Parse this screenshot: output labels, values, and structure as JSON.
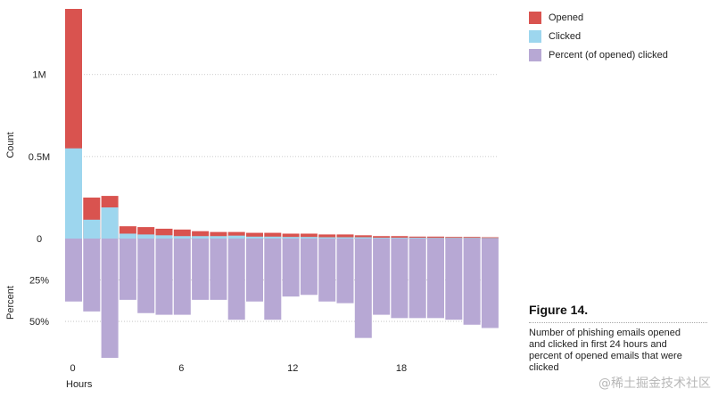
{
  "chart_data": {
    "type": "bar",
    "hours": [
      0,
      1,
      2,
      3,
      4,
      5,
      6,
      7,
      8,
      9,
      10,
      11,
      12,
      13,
      14,
      15,
      16,
      17,
      18,
      19,
      20,
      21,
      22,
      23
    ],
    "x_ticks": [
      "0",
      "6",
      "12",
      "18"
    ],
    "xlabel": "Hours",
    "top_panel": {
      "ylabel": "Count",
      "y_ticks": [
        {
          "value": 0,
          "label": "0"
        },
        {
          "value": 500000,
          "label": "0.5M"
        },
        {
          "value": 1000000,
          "label": "1M"
        }
      ],
      "ylim": [
        0,
        1400000
      ],
      "series": [
        {
          "name": "Opened",
          "color": "#d9534f",
          "values": [
            1400000,
            250000,
            260000,
            75000,
            70000,
            60000,
            55000,
            45000,
            40000,
            40000,
            35000,
            35000,
            30000,
            30000,
            25000,
            25000,
            20000,
            15000,
            15000,
            12000,
            12000,
            10000,
            10000,
            8000
          ]
        },
        {
          "name": "Clicked",
          "color": "#9dd6ee",
          "values": [
            550000,
            115000,
            190000,
            30000,
            25000,
            20000,
            15000,
            15000,
            15000,
            18000,
            12000,
            12000,
            10000,
            10000,
            8000,
            8000,
            8000,
            5000,
            5000,
            5000,
            4000,
            4000,
            4000,
            3000
          ]
        }
      ]
    },
    "bottom_panel": {
      "ylabel": "Percent",
      "y_ticks": [
        {
          "value": 25,
          "label": "25%"
        },
        {
          "value": 50,
          "label": "50%"
        }
      ],
      "ylim": [
        0,
        72
      ],
      "series": [
        {
          "name": "Percent (of opened) clicked",
          "color": "#b7a8d4",
          "values": [
            38,
            44,
            72,
            37,
            45,
            46,
            46,
            37,
            37,
            49,
            38,
            49,
            35,
            34,
            38,
            39,
            60,
            46,
            48,
            48,
            48,
            49,
            52,
            54
          ]
        }
      ]
    }
  },
  "legend": [
    {
      "label": "Opened",
      "color": "#d9534f"
    },
    {
      "label": "Clicked",
      "color": "#9dd6ee"
    },
    {
      "label": "Percent (of opened) clicked",
      "color": "#b7a8d4"
    }
  ],
  "figure": {
    "title": "Figure 14.",
    "caption": "Number of phishing emails opened and clicked in first 24 hours and percent of opened emails that were clicked"
  },
  "watermark": "@稀土掘金技术社区"
}
